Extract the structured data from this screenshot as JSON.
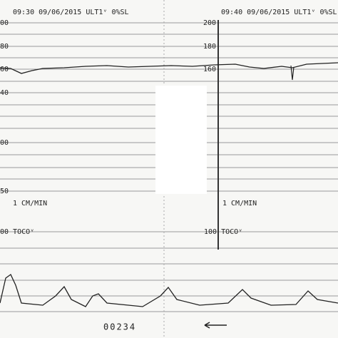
{
  "strip": {
    "headers": [
      "09:30 09/06/2015  ULT1ᵛ  0%SL",
      "09:40 09/06/2015  ULT1ᵛ  0%SL"
    ],
    "left_scale": [
      "00",
      "80",
      "60",
      "40",
      "00",
      "50"
    ],
    "mid_scale": [
      "200",
      "180",
      "160"
    ],
    "speed": [
      "1 CM/MIN",
      "1 CM/MIN"
    ],
    "toco": [
      "00 TOCOᵛ",
      "100 TOCOᵛ"
    ],
    "page_number": "00234"
  }
}
